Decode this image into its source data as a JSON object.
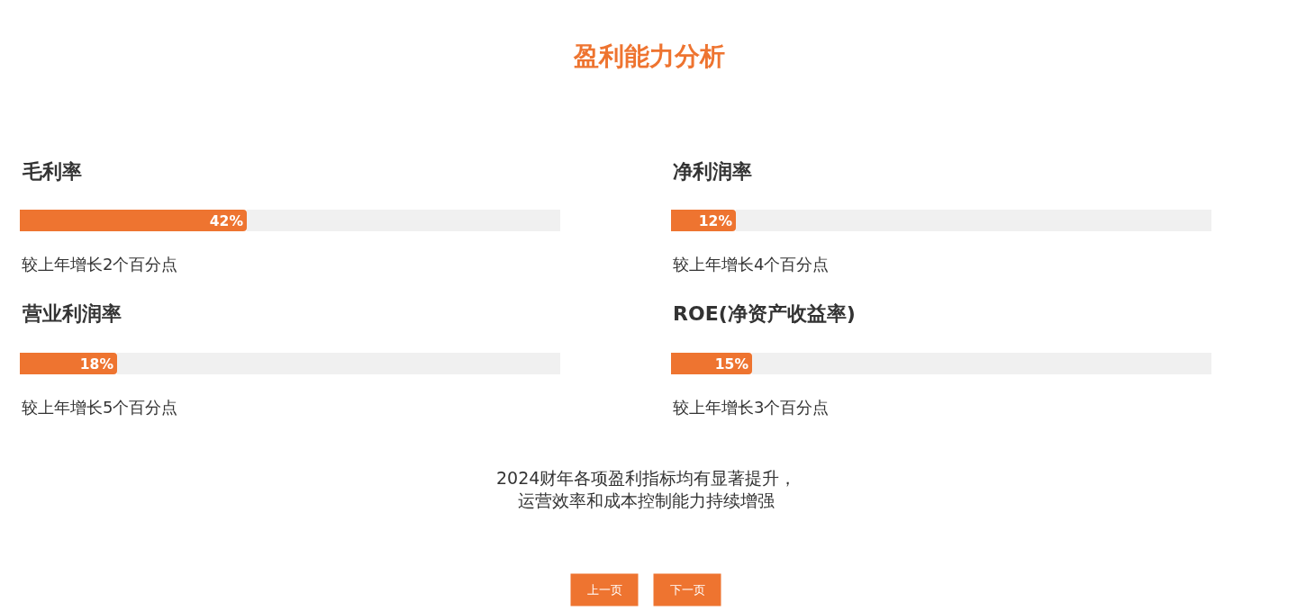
{
  "chart_data": [
    {
      "type": "other",
      "title": "盈利能力分析"
    },
    {
      "type": "bar",
      "orientation": "horizontal",
      "categories": [
        "毛利率",
        "营业利润率"
      ],
      "values": [
        42,
        18
      ],
      "value_labels": [
        "42%",
        "18%"
      ],
      "color": "#ee7430",
      "xlim": [
        0,
        100
      ],
      "tick_labels": "y",
      "annotations": [
        "较上年增长2个百分点",
        "较上年增长5个百分点"
      ]
    },
    {
      "type": "bar",
      "orientation": "horizontal",
      "categories": [
        "净利润率",
        "ROE(净资产收益率)"
      ],
      "values": [
        12,
        15
      ],
      "value_labels": [
        "12%",
        "15%"
      ],
      "color": "#ee7430",
      "xlim": [
        0,
        100
      ],
      "tick_labels": "y",
      "annotations": [
        "较上年增长4个百分点",
        "较上年增长3个百分点"
      ]
    },
    {
      "type": "other",
      "annotations": [
        "2024财年各项盈利指标均有显著提升，运营效率和成本控制能力持续增强",
        "上一页",
        "下一页"
      ]
    }
  ]
}
